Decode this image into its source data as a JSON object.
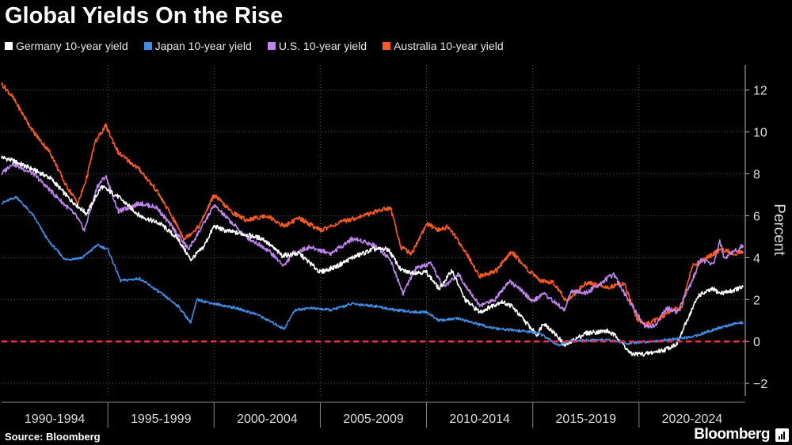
{
  "title": "Global Yields On the Rise",
  "legend": [
    {
      "label": "Germany 10-year yield",
      "color": "#ffffff"
    },
    {
      "label": "Japan 10-year yield",
      "color": "#3f8fe6"
    },
    {
      "label": "U.S. 10-year yield",
      "color": "#c084f0"
    },
    {
      "label": "Australia 10-year yield",
      "color": "#ff5a1f"
    }
  ],
  "source": "Source: Bloomberg",
  "brand": "Bloomberg",
  "chart_data": {
    "type": "line",
    "title": "Global Yields On the Rise",
    "xlabel": "",
    "ylabel": "Percent",
    "xlim": [
      1990,
      2025
    ],
    "ylim": [
      -2.6,
      13.2
    ],
    "yticks": [
      -2,
      0,
      2,
      4,
      6,
      8,
      10,
      12
    ],
    "x_periods": [
      "1990-1994",
      "1995-1999",
      "2000-2004",
      "2005-2009",
      "2010-2014",
      "2015-2019",
      "2020-2024"
    ],
    "reference_line": {
      "y": 0,
      "color": "#e8304a",
      "style": "dashed"
    },
    "series": [
      {
        "name": "Germany 10-year yield",
        "color": "#ffffff",
        "x": [
          1990.0,
          1990.6,
          1991.5,
          1992.3,
          1993.2,
          1994.0,
          1994.7,
          1995.5,
          1996.5,
          1997.5,
          1998.3,
          1998.9,
          1999.5,
          2000.0,
          2000.5,
          2001.5,
          2002.3,
          2003.2,
          2004.0,
          2005.0,
          2005.8,
          2006.5,
          2007.5,
          2008.2,
          2008.8,
          2009.2,
          2010.0,
          2010.6,
          2011.2,
          2011.8,
          2012.5,
          2013.5,
          2014.0,
          2014.6,
          2015.2,
          2015.5,
          2016.2,
          2016.5,
          2017.5,
          2018.5,
          2019.0,
          2019.6,
          2020.3,
          2021.2,
          2021.8,
          2022.3,
          2022.8,
          2023.5,
          2023.8,
          2024.3,
          2024.9
        ],
        "values": [
          8.8,
          8.6,
          8.2,
          7.8,
          6.8,
          6.1,
          7.4,
          6.9,
          6.0,
          5.6,
          4.9,
          3.9,
          4.5,
          5.5,
          5.3,
          5.1,
          4.9,
          4.1,
          4.2,
          3.3,
          3.6,
          4.0,
          4.4,
          4.4,
          3.4,
          3.3,
          3.3,
          2.5,
          3.4,
          2.0,
          1.4,
          1.9,
          1.7,
          1.0,
          0.3,
          0.9,
          0.2,
          -0.2,
          0.4,
          0.5,
          0.2,
          -0.6,
          -0.6,
          -0.4,
          -0.1,
          1.1,
          2.2,
          2.5,
          2.3,
          2.4,
          2.6
        ]
      },
      {
        "name": "Japan 10-year yield",
        "color": "#3f8fe6",
        "x": [
          1990.0,
          1990.7,
          1991.5,
          1992.2,
          1993.0,
          1993.8,
          1994.5,
          1995.0,
          1995.6,
          1996.5,
          1997.5,
          1998.3,
          1998.9,
          1999.2,
          2000.0,
          2001.0,
          2002.0,
          2003.3,
          2003.8,
          2004.5,
          2005.5,
          2006.5,
          2007.5,
          2008.5,
          2009.5,
          2010.0,
          2010.6,
          2011.5,
          2012.5,
          2013.3,
          2014.5,
          2015.3,
          2016.2,
          2016.6,
          2017.5,
          2018.5,
          2019.5,
          2020.5,
          2021.5,
          2022.5,
          2023.3,
          2024.3,
          2024.9
        ],
        "values": [
          6.6,
          6.9,
          6.0,
          4.8,
          3.9,
          4.0,
          4.6,
          4.4,
          2.9,
          3.0,
          2.3,
          1.7,
          0.9,
          2.0,
          1.8,
          1.6,
          1.3,
          0.6,
          1.5,
          1.6,
          1.5,
          1.8,
          1.7,
          1.5,
          1.4,
          1.4,
          1.0,
          1.1,
          0.8,
          0.6,
          0.5,
          0.4,
          -0.2,
          0.0,
          0.05,
          0.1,
          -0.1,
          0.0,
          0.1,
          0.2,
          0.5,
          0.8,
          0.9
        ]
      },
      {
        "name": "U.S. 10-year yield",
        "color": "#c084f0",
        "x": [
          1990.0,
          1990.5,
          1991.5,
          1992.5,
          1993.5,
          1993.9,
          1994.5,
          1994.9,
          1995.5,
          1996.5,
          1997.3,
          1998.0,
          1998.8,
          1999.5,
          2000.0,
          2000.8,
          2001.5,
          2002.5,
          2003.3,
          2003.7,
          2004.5,
          2005.5,
          2006.5,
          2007.0,
          2007.7,
          2008.3,
          2008.9,
          2009.5,
          2010.2,
          2010.8,
          2011.5,
          2012.5,
          2013.2,
          2013.9,
          2014.6,
          2015.0,
          2015.5,
          2016.5,
          2016.8,
          2017.5,
          2018.8,
          2019.5,
          2020.3,
          2020.8,
          2021.3,
          2021.8,
          2022.5,
          2022.9,
          2023.5,
          2023.8,
          2024.0,
          2024.5,
          2024.9
        ],
        "values": [
          8.0,
          8.5,
          8.0,
          7.0,
          6.0,
          5.3,
          7.4,
          7.9,
          6.2,
          6.6,
          6.4,
          5.5,
          4.4,
          5.6,
          6.5,
          5.7,
          5.0,
          4.4,
          3.6,
          4.2,
          4.5,
          4.2,
          4.9,
          4.8,
          4.5,
          3.9,
          2.3,
          3.5,
          3.7,
          2.6,
          3.2,
          1.7,
          2.0,
          2.9,
          2.3,
          1.9,
          2.3,
          1.5,
          2.4,
          2.3,
          3.2,
          2.0,
          0.7,
          0.8,
          1.6,
          1.4,
          2.9,
          3.9,
          3.7,
          4.8,
          4.0,
          4.3,
          4.6
        ]
      },
      {
        "name": "Australia 10-year yield",
        "color": "#ff5a1f",
        "x": [
          1990.0,
          1990.5,
          1991.5,
          1992.3,
          1993.0,
          1993.6,
          1994.0,
          1994.4,
          1994.9,
          1995.5,
          1996.0,
          1996.5,
          1997.3,
          1998.0,
          1998.6,
          1999.3,
          2000.0,
          2000.8,
          2001.5,
          2002.5,
          2003.3,
          2004.0,
          2005.0,
          2006.0,
          2007.0,
          2007.6,
          2008.3,
          2008.8,
          2009.3,
          2010.0,
          2010.6,
          2011.0,
          2011.7,
          2012.5,
          2013.3,
          2014.0,
          2014.7,
          2015.3,
          2016.0,
          2016.6,
          2017.5,
          2018.0,
          2018.6,
          2019.3,
          2019.9,
          2020.3,
          2021.0,
          2021.5,
          2022.0,
          2022.5,
          2022.9,
          2023.5,
          2023.9,
          2024.5,
          2024.9
        ],
        "values": [
          12.3,
          11.7,
          10.0,
          9.0,
          7.5,
          6.6,
          7.8,
          9.5,
          10.3,
          9.0,
          8.6,
          8.2,
          7.2,
          6.0,
          4.9,
          5.5,
          7.0,
          6.2,
          5.8,
          6.0,
          5.5,
          5.9,
          5.3,
          5.7,
          6.0,
          6.2,
          6.4,
          4.5,
          4.2,
          5.6,
          5.3,
          5.5,
          4.5,
          3.1,
          3.4,
          4.3,
          3.5,
          2.9,
          2.8,
          1.9,
          2.8,
          2.7,
          2.6,
          2.8,
          1.1,
          0.8,
          1.1,
          1.5,
          1.6,
          3.6,
          3.8,
          4.2,
          4.4,
          4.2,
          4.3
        ]
      }
    ]
  }
}
